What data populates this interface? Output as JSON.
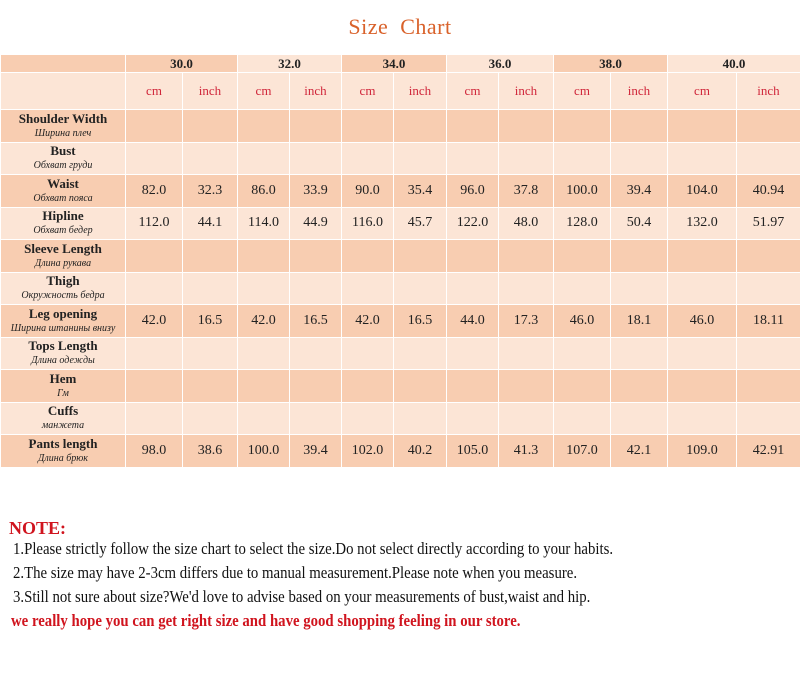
{
  "title": "Size  Chart",
  "sizes": [
    "30.0",
    "32.0",
    "34.0",
    "36.0",
    "38.0",
    "40.0"
  ],
  "units": [
    "cm",
    "inch"
  ],
  "colors": {
    "dark_row": "#f8cdb1",
    "light_row": "#fce5d6",
    "unit_text": "#d0263a",
    "title": "#d9622b",
    "note_red": "#d0141e"
  },
  "rows": [
    {
      "label": "Shoulder Width",
      "ru": "Ширина плеч",
      "values": [
        "",
        "",
        "",
        "",
        "",
        "",
        "",
        "",
        "",
        "",
        "",
        ""
      ]
    },
    {
      "label": "Bust",
      "ru": "Обхват груди",
      "values": [
        "",
        "",
        "",
        "",
        "",
        "",
        "",
        "",
        "",
        "",
        "",
        ""
      ]
    },
    {
      "label": "Waist",
      "ru": "Обхват пояса",
      "values": [
        "82.0",
        "32.3",
        "86.0",
        "33.9",
        "90.0",
        "35.4",
        "96.0",
        "37.8",
        "100.0",
        "39.4",
        "104.0",
        "40.94"
      ]
    },
    {
      "label": "Hipline",
      "ru": "Обхват бедер",
      "values": [
        "112.0",
        "44.1",
        "114.0",
        "44.9",
        "116.0",
        "45.7",
        "122.0",
        "48.0",
        "128.0",
        "50.4",
        "132.0",
        "51.97"
      ]
    },
    {
      "label": "Sleeve Length",
      "ru": "Длина рукава",
      "values": [
        "",
        "",
        "",
        "",
        "",
        "",
        "",
        "",
        "",
        "",
        "",
        ""
      ]
    },
    {
      "label": "Thigh",
      "ru": "Окружность бедра",
      "values": [
        "",
        "",
        "",
        "",
        "",
        "",
        "",
        "",
        "",
        "",
        "",
        ""
      ]
    },
    {
      "label": "Leg opening",
      "ru": "Ширина штанины внизу",
      "values": [
        "42.0",
        "16.5",
        "42.0",
        "16.5",
        "42.0",
        "16.5",
        "44.0",
        "17.3",
        "46.0",
        "18.1",
        "46.0",
        "18.11"
      ]
    },
    {
      "label": "Tops Length",
      "ru": "Длина одежды",
      "values": [
        "",
        "",
        "",
        "",
        "",
        "",
        "",
        "",
        "",
        "",
        "",
        ""
      ]
    },
    {
      "label": "Hem",
      "ru": "Гм",
      "values": [
        "",
        "",
        "",
        "",
        "",
        "",
        "",
        "",
        "",
        "",
        "",
        ""
      ]
    },
    {
      "label": "Cuffs",
      "ru": "манжета",
      "values": [
        "",
        "",
        "",
        "",
        "",
        "",
        "",
        "",
        "",
        "",
        "",
        ""
      ]
    },
    {
      "label": "Pants length",
      "ru": "Длина брюк",
      "values": [
        "98.0",
        "38.6",
        "100.0",
        "39.4",
        "102.0",
        "40.2",
        "105.0",
        "41.3",
        "107.0",
        "42.1",
        "109.0",
        "42.91"
      ]
    }
  ],
  "notes": {
    "title": "NOTE:",
    "lines": [
      "1.Please strictly follow the size chart to select the size.Do not select directly according to your habits.",
      "2.The size may have 2-3cm differs due to manual measurement.Please note when you measure.",
      "3.Still not sure about size?We'd love to advise based on your measurements of bust,waist and hip."
    ],
    "closing": "we really hope you can get right size and have good shopping feeling in our store."
  }
}
